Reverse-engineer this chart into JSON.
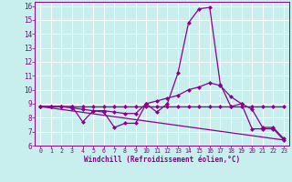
{
  "xlabel": "Windchill (Refroidissement éolien,°C)",
  "bg_color": "#c8eeed",
  "line_color": "#8b008b",
  "grid_color": "#ffffff",
  "xlim": [
    -0.5,
    23.5
  ],
  "ylim": [
    6,
    16.3
  ],
  "yticks": [
    6,
    7,
    8,
    9,
    10,
    11,
    12,
    13,
    14,
    15,
    16
  ],
  "xticks": [
    0,
    1,
    2,
    3,
    4,
    5,
    6,
    7,
    8,
    9,
    10,
    11,
    12,
    13,
    14,
    15,
    16,
    17,
    18,
    19,
    20,
    21,
    22,
    23
  ],
  "line1_x": [
    0,
    1,
    2,
    3,
    4,
    5,
    6,
    7,
    8,
    9,
    10,
    11,
    12,
    13,
    14,
    15,
    16,
    17,
    18,
    19,
    20,
    21,
    22,
    23
  ],
  "line1_y": [
    8.8,
    8.8,
    8.8,
    8.8,
    8.8,
    8.8,
    8.8,
    8.8,
    8.8,
    8.8,
    8.8,
    8.8,
    8.8,
    8.8,
    8.8,
    8.8,
    8.8,
    8.8,
    8.8,
    8.8,
    8.8,
    8.8,
    8.8,
    8.8
  ],
  "line2_x": [
    0,
    1,
    2,
    3,
    4,
    5,
    6,
    7,
    8,
    9,
    10,
    11,
    12,
    13,
    14,
    15,
    16,
    17,
    18,
    19,
    20,
    21,
    22,
    23
  ],
  "line2_y": [
    8.8,
    8.8,
    8.8,
    8.8,
    7.7,
    8.5,
    8.4,
    7.3,
    7.6,
    7.6,
    9.0,
    8.4,
    9.0,
    11.2,
    14.8,
    15.8,
    15.9,
    10.4,
    8.8,
    9.0,
    7.2,
    7.2,
    7.2,
    6.4
  ],
  "line3_x": [
    0,
    1,
    2,
    3,
    4,
    5,
    6,
    7,
    8,
    9,
    10,
    11,
    12,
    13,
    14,
    15,
    16,
    17,
    18,
    19,
    20,
    21,
    22,
    23
  ],
  "line3_y": [
    8.8,
    8.8,
    8.8,
    8.7,
    8.6,
    8.5,
    8.5,
    8.4,
    8.3,
    8.3,
    9.0,
    9.2,
    9.4,
    9.6,
    10.0,
    10.2,
    10.5,
    10.3,
    9.5,
    9.0,
    8.6,
    7.3,
    7.3,
    6.5
  ],
  "line4_x": [
    0,
    23
  ],
  "line4_y": [
    8.8,
    6.4
  ]
}
